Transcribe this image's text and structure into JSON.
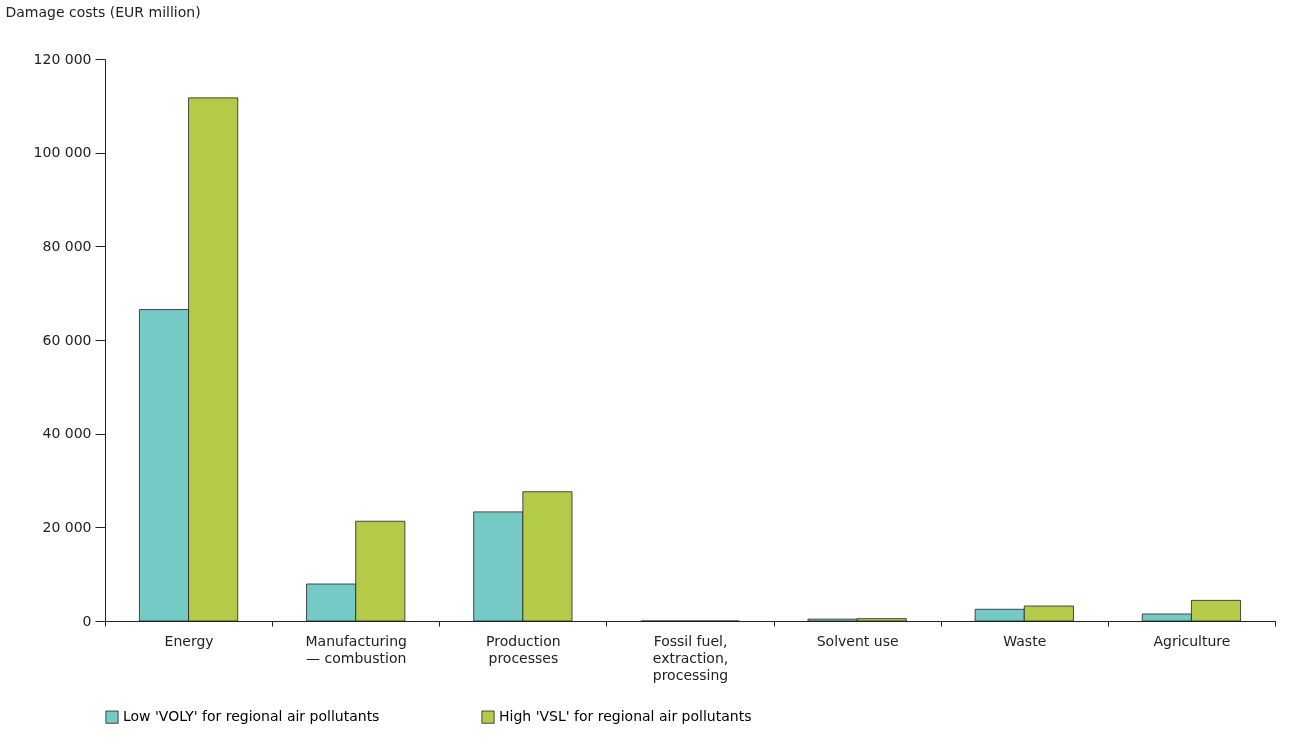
{
  "chart_data": {
    "type": "bar",
    "ylabel": "Damage costs (EUR million)",
    "categories": [
      "Energy",
      "Manufacturing — combustion",
      "Production processes",
      "Fossil fuel, extraction, processing",
      "Solvent use",
      "Waste",
      "Agriculture"
    ],
    "series": [
      {
        "name": "Low 'VOLY' for regional air pollutants",
        "color": "#76cac6",
        "values": [
          66500,
          7900,
          23300,
          0,
          400,
          2500,
          1500
        ]
      },
      {
        "name": "High 'VSL' for regional air pollutants",
        "color": "#b4cb49",
        "values": [
          111700,
          21300,
          27600,
          0,
          500,
          3200,
          4400
        ]
      }
    ],
    "ylim": [
      0,
      120000
    ],
    "yticks": [
      {
        "value": 0,
        "label": "0"
      },
      {
        "value": 20000,
        "label": "20 000"
      },
      {
        "value": 40000,
        "label": "40 000"
      },
      {
        "value": 60000,
        "label": "60 000"
      },
      {
        "value": 80000,
        "label": "80 000"
      },
      {
        "value": 100000,
        "label": "100 000"
      },
      {
        "value": 120000,
        "label": "120 000"
      }
    ],
    "grid": false,
    "legend": "bottom"
  }
}
